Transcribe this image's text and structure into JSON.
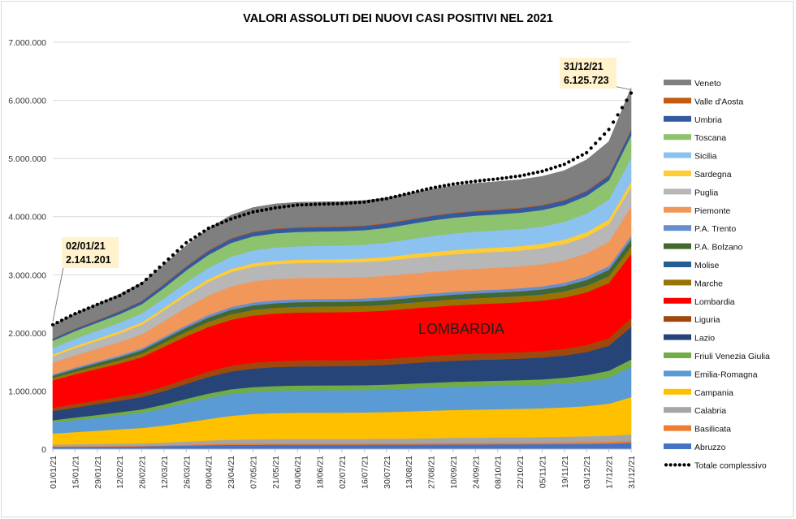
{
  "chart_data": {
    "type": "area",
    "stacked": true,
    "title": "VALORI ASSOLUTI DEI NUOVI CASI POSITIVI NEL  2021",
    "xlabel": "",
    "ylabel": "",
    "ylim": [
      0,
      7000000
    ],
    "yticks": [
      "0",
      "1.000.000",
      "2.000.000",
      "3.000.000",
      "4.000.000",
      "5.000.000",
      "6.000.000",
      "7.000.000"
    ],
    "categories": [
      "01/01/21",
      "15/01/21",
      "29/01/21",
      "12/02/21",
      "26/02/21",
      "12/03/21",
      "26/03/21",
      "09/04/21",
      "23/04/21",
      "07/05/21",
      "21/05/21",
      "04/06/21",
      "18/06/21",
      "02/07/21",
      "16/07/21",
      "30/07/21",
      "13/08/21",
      "27/08/21",
      "10/09/21",
      "24/09/21",
      "08/10/21",
      "22/10/21",
      "05/11/21",
      "19/11/21",
      "03/12/21",
      "17/12/21",
      "31/12/21"
    ],
    "series": [
      {
        "name": "Abruzzo",
        "color": "#4472c4",
        "values": [
          38000,
          40000,
          42000,
          45000,
          49000,
          54000,
          62000,
          70000,
          74000,
          76000,
          77000,
          78000,
          78000,
          78000,
          78000,
          79000,
          80000,
          81000,
          82000,
          83000,
          84000,
          85000,
          87000,
          89000,
          92000,
          96000,
          110000
        ]
      },
      {
        "name": "Basilicata",
        "color": "#ed7d31",
        "values": [
          11000,
          12000,
          13000,
          14000,
          15000,
          17000,
          19000,
          22000,
          24000,
          25000,
          26000,
          27000,
          27000,
          27000,
          27000,
          27000,
          27000,
          28000,
          29000,
          29000,
          30000,
          30000,
          30000,
          31000,
          32000,
          33000,
          36000
        ]
      },
      {
        "name": "Calabria",
        "color": "#a5a5a5",
        "values": [
          30000,
          33000,
          35000,
          38000,
          40000,
          44000,
          50000,
          58000,
          66000,
          70000,
          72000,
          73000,
          73000,
          73000,
          73000,
          74000,
          76000,
          79000,
          84000,
          87000,
          89000,
          90000,
          92000,
          95000,
          98000,
          103000,
          110000
        ]
      },
      {
        "name": "Campania",
        "color": "#ffc000",
        "values": [
          190000,
          210000,
          228000,
          245000,
          262000,
          290000,
          330000,
          370000,
          410000,
          435000,
          445000,
          450000,
          451000,
          452000,
          455000,
          460000,
          468000,
          475000,
          480000,
          483000,
          486000,
          490000,
          495000,
          505000,
          520000,
          550000,
          640000
        ]
      },
      {
        "name": "Emilia-Romagna",
        "color": "#5b9bd5",
        "values": [
          190000,
          205000,
          222000,
          240000,
          262000,
          300000,
          335000,
          360000,
          375000,
          380000,
          382000,
          383000,
          384000,
          384000,
          385000,
          387000,
          390000,
          394000,
          398000,
          400000,
          402000,
          404000,
          406000,
          412000,
          425000,
          450000,
          520000
        ]
      },
      {
        "name": "Friuli Venezia Giulia",
        "color": "#70ad47",
        "values": [
          40000,
          46000,
          50000,
          54000,
          58000,
          63000,
          70000,
          78000,
          82000,
          84000,
          85000,
          85000,
          85000,
          85000,
          85000,
          85000,
          86000,
          86000,
          87000,
          88000,
          88000,
          89000,
          92000,
          98000,
          108000,
          118000,
          130000
        ]
      },
      {
        "name": "Lazio",
        "color": "#264478",
        "values": [
          158000,
          170000,
          185000,
          198000,
          212000,
          232000,
          258000,
          285000,
          305000,
          318000,
          325000,
          328000,
          329000,
          330000,
          332000,
          340000,
          350000,
          357000,
          362000,
          365000,
          367000,
          370000,
          374000,
          382000,
          398000,
          430000,
          560000
        ]
      },
      {
        "name": "Liguria",
        "color": "#9e480e",
        "values": [
          58000,
          63000,
          67000,
          71000,
          75000,
          82000,
          88000,
          95000,
          100000,
          102000,
          103000,
          104000,
          104000,
          104000,
          104000,
          105000,
          106000,
          107000,
          108000,
          109000,
          110000,
          111000,
          113000,
          116000,
          121000,
          130000,
          150000
        ]
      },
      {
        "name": "Lombardia",
        "color": "#ff0000",
        "values": [
          470000,
          510000,
          540000,
          570000,
          610000,
          680000,
          730000,
          765000,
          790000,
          810000,
          820000,
          823000,
          825000,
          826000,
          828000,
          830000,
          835000,
          840000,
          845000,
          850000,
          855000,
          860000,
          868000,
          880000,
          905000,
          950000,
          1100000
        ]
      },
      {
        "name": "Marche",
        "color": "#997300",
        "values": [
          42000,
          46000,
          50000,
          55000,
          61000,
          72000,
          82000,
          91000,
          96000,
          99000,
          100000,
          101000,
          101000,
          101000,
          101000,
          102000,
          103000,
          104000,
          105000,
          106000,
          106000,
          107000,
          108000,
          110000,
          115000,
          121000,
          135000
        ]
      },
      {
        "name": "Molise",
        "color": "#255e91",
        "values": [
          5000,
          5300,
          5600,
          6000,
          6600,
          7400,
          8400,
          9500,
          10200,
          10600,
          10800,
          10900,
          10900,
          10900,
          11000,
          11000,
          11100,
          11200,
          11300,
          11400,
          11500,
          11600,
          11700,
          11900,
          12200,
          12700,
          14000
        ]
      },
      {
        "name": "P.A. Bolzano",
        "color": "#43682b",
        "values": [
          32000,
          38000,
          43000,
          47000,
          51000,
          56000,
          60000,
          63000,
          65000,
          66000,
          66000,
          66000,
          66000,
          66000,
          66000,
          66000,
          67000,
          67000,
          67000,
          68000,
          68000,
          69000,
          72000,
          78000,
          86000,
          94000,
          100000
        ]
      },
      {
        "name": "P.A. Trento",
        "color": "#698ed0",
        "values": [
          24000,
          26000,
          28000,
          30000,
          33000,
          37000,
          41000,
          45000,
          48000,
          49000,
          49000,
          49000,
          49000,
          49000,
          49000,
          49000,
          49000,
          50000,
          50000,
          51000,
          51000,
          52000,
          53000,
          55000,
          58000,
          62000,
          68000
        ]
      },
      {
        "name": "Piemonte",
        "color": "#f1975a",
        "values": [
          200000,
          212000,
          222000,
          232000,
          245000,
          270000,
          305000,
          335000,
          355000,
          363000,
          366000,
          367000,
          367000,
          367000,
          367000,
          368000,
          370000,
          372000,
          374000,
          376000,
          377000,
          378000,
          381000,
          387000,
          398000,
          420000,
          500000
        ]
      },
      {
        "name": "Puglia",
        "color": "#b7b7b7",
        "values": [
          110000,
          122000,
          133000,
          145000,
          160000,
          183000,
          208000,
          230000,
          245000,
          253000,
          257000,
          258000,
          259000,
          259000,
          260000,
          262000,
          265000,
          268000,
          270000,
          271000,
          272000,
          273000,
          275000,
          279000,
          287000,
          300000,
          330000
        ]
      },
      {
        "name": "Sardegna",
        "color": "#ffcd33",
        "values": [
          34000,
          37000,
          39000,
          41000,
          42000,
          44000,
          47000,
          51000,
          55000,
          57000,
          58000,
          58000,
          58000,
          59000,
          60000,
          62000,
          67000,
          71000,
          73000,
          74000,
          74000,
          75000,
          76000,
          77000,
          80000,
          84000,
          94000
        ]
      },
      {
        "name": "Sicilia",
        "color": "#8cc2f0",
        "values": [
          110000,
          125000,
          136000,
          146000,
          154000,
          164000,
          178000,
          193000,
          210000,
          222000,
          228000,
          231000,
          232000,
          234000,
          237000,
          246000,
          260000,
          275000,
          285000,
          290000,
          293000,
          295000,
          298000,
          305000,
          318000,
          340000,
          410000
        ]
      },
      {
        "name": "Toscana",
        "color": "#8dc26f",
        "values": [
          125000,
          133000,
          140000,
          147000,
          158000,
          180000,
          205000,
          225000,
          238000,
          243000,
          246000,
          247000,
          248000,
          248000,
          250000,
          255000,
          262000,
          268000,
          272000,
          275000,
          277000,
          279000,
          283000,
          290000,
          305000,
          330000,
          390000
        ]
      },
      {
        "name": "Umbria",
        "color": "#335aa1",
        "values": [
          32000,
          35000,
          39000,
          45000,
          53000,
          61000,
          66000,
          69000,
          71000,
          72000,
          72000,
          72000,
          72000,
          72000,
          72000,
          73000,
          74000,
          75000,
          76000,
          76000,
          77000,
          77000,
          78000,
          79000,
          81000,
          84000,
          95000
        ]
      },
      {
        "name": "Valle d'Aosta",
        "color": "#c55a11",
        "values": [
          8000,
          8300,
          8600,
          9000,
          9400,
          10200,
          10800,
          11300,
          11600,
          11700,
          11700,
          11700,
          11700,
          11700,
          11700,
          11800,
          11900,
          12000,
          12100,
          12200,
          12300,
          12400,
          12600,
          12900,
          13200,
          13600,
          14000
        ]
      },
      {
        "name": "Veneto",
        "color": "#7f7f7f",
        "values": [
          230000,
          255000,
          272000,
          287000,
          305000,
          330000,
          350000,
          370000,
          390000,
          410000,
          420000,
          423000,
          424000,
          425000,
          426000,
          430000,
          440000,
          450000,
          460000,
          468000,
          473000,
          478000,
          486000,
          500000,
          525000,
          570000,
          708000
        ]
      }
    ],
    "total": {
      "name": "Totale complessivo",
      "values": [
        2141000,
        2330000,
        2490000,
        2640000,
        2850000,
        3200000,
        3550000,
        3800000,
        3960000,
        4080000,
        4150000,
        4200000,
        4215000,
        4225000,
        4250000,
        4310000,
        4400000,
        4490000,
        4560000,
        4610000,
        4650000,
        4700000,
        4780000,
        4900000,
        5100000,
        5500000,
        6125723
      ]
    },
    "annotations": [
      {
        "date": "02/01/21",
        "value": "2.141.201"
      },
      {
        "date": "31/12/21",
        "value": "6.125.723"
      }
    ],
    "region_label": "LOMBARDIA",
    "legend_position": "right",
    "grid": "horizontal"
  }
}
